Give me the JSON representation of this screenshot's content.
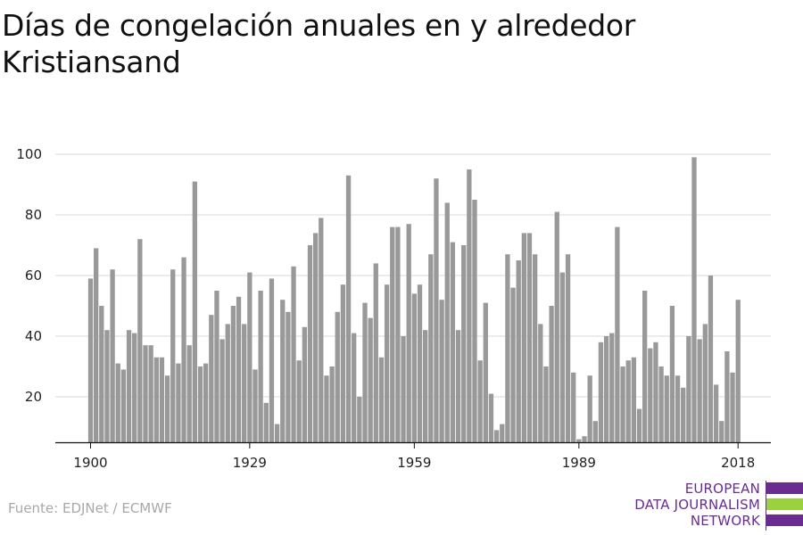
{
  "title": "Días de congelación anuales en y alrededor Kristiansand",
  "source": "Fuente: EDJNet / ECMWF",
  "logo": {
    "lines": [
      "EUROPEAN",
      "DATA JOURNALISM",
      "NETWORK"
    ],
    "colors": {
      "purple": "#6b2c91",
      "green": "#9bd13f"
    }
  },
  "colors": {
    "bar": "#999999",
    "grid": "#d9d9d9",
    "axis": "#111111"
  },
  "chart_data": {
    "type": "bar",
    "x_start": 1900,
    "x_end": 2018,
    "xticks": [
      1900,
      1929,
      1959,
      1989,
      2018
    ],
    "yticks": [
      20,
      40,
      60,
      80,
      100
    ],
    "ylim": [
      5,
      100
    ],
    "grid": true,
    "values": [
      59,
      69,
      50,
      42,
      62,
      31,
      29,
      42,
      41,
      72,
      37,
      37,
      33,
      33,
      27,
      62,
      31,
      66,
      37,
      91,
      30,
      31,
      47,
      55,
      39,
      44,
      50,
      53,
      44,
      61,
      29,
      55,
      18,
      59,
      11,
      52,
      48,
      63,
      32,
      43,
      70,
      74,
      79,
      27,
      30,
      48,
      57,
      93,
      41,
      20,
      51,
      46,
      64,
      33,
      57,
      76,
      76,
      40,
      77,
      54,
      57,
      42,
      67,
      92,
      52,
      84,
      71,
      42,
      70,
      95,
      85,
      32,
      51,
      21,
      9,
      11,
      67,
      56,
      65,
      74,
      74,
      67,
      44,
      30,
      50,
      81,
      61,
      67,
      28,
      6,
      7,
      27,
      12,
      38,
      40,
      41,
      76,
      30,
      32,
      33,
      16,
      55,
      36,
      38,
      30,
      27,
      50,
      27,
      23,
      40,
      99,
      39,
      44,
      60,
      24,
      12,
      35,
      28,
      52
    ]
  }
}
